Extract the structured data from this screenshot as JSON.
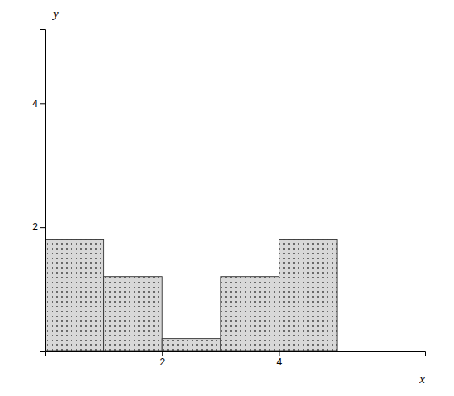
{
  "chart_data": {
    "type": "histogram",
    "bins": [
      0,
      1,
      2,
      3,
      4,
      5
    ],
    "values": [
      1.8,
      1.2,
      0.2,
      1.2,
      1.8
    ],
    "color": "#d8d8d8",
    "xlim": [
      0,
      6.5
    ],
    "ylim": [
      0,
      5.2
    ],
    "xticks": [
      2,
      4
    ],
    "yticks": [
      2,
      4
    ],
    "x_label": "x",
    "y_label": "y"
  }
}
